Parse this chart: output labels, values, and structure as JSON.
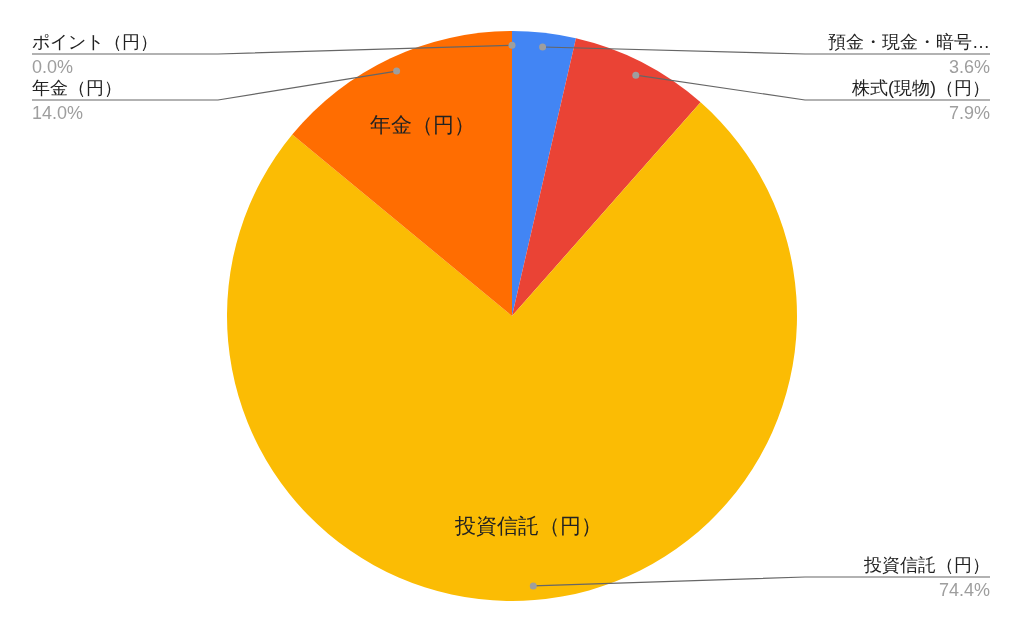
{
  "chart_data": {
    "type": "pie",
    "categories": [
      "預金・現金・暗号…",
      "株式(現物)（円）",
      "投資信託（円）",
      "年金（円）",
      "ポイント（円）"
    ],
    "values": [
      3.6,
      7.9,
      74.4,
      14.0,
      0.0
    ],
    "colors": [
      "#4285f4",
      "#ea4335",
      "#fbbc04",
      "#ff6d01",
      null
    ],
    "value_labels": [
      "3.6%",
      "7.9%",
      "74.4%",
      "14.0%",
      "0.0%"
    ]
  }
}
